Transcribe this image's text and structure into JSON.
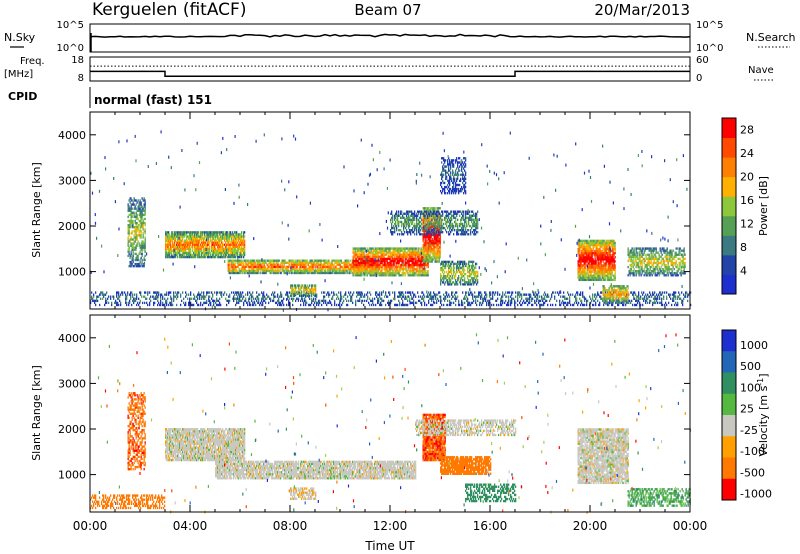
{
  "header": {
    "station": "Kerguelen (fitACF)",
    "beam": "Beam 07",
    "date": "20/Mar/2013"
  },
  "noise_panel": {
    "left_label": "N.Sky",
    "left_ticks": [
      "10^5",
      "10^0"
    ],
    "right_label": "N.Search",
    "right_ticks": [
      "10^5",
      "10^0"
    ],
    "nsky_level": 0.55,
    "nsearch_level": 0.55
  },
  "freq_panel": {
    "left_label_1": "Freq.",
    "left_label_2": "[MHz]",
    "left_ticks": [
      "18",
      "8"
    ],
    "right_label": "Nave",
    "right_ticks": [
      "60",
      "0"
    ],
    "freq_hours": [
      0.0,
      3.0,
      3.0,
      17.0,
      17.0,
      24.0
    ],
    "freq_mhz": [
      12.0,
      12.0,
      10.0,
      10.0,
      12.0,
      12.0
    ],
    "nave_level": 0.62
  },
  "cpid": {
    "label": "CPID",
    "text": "normal (fast) 151"
  },
  "x_axis": {
    "label": "Time UT",
    "ticks": [
      "00:00",
      "04:00",
      "08:00",
      "12:00",
      "16:00",
      "20:00",
      "00:00"
    ],
    "range_hours": [
      0,
      24
    ]
  },
  "colors": {
    "power": [
      "#1e2fd0",
      "#2244a8",
      "#3a7a80",
      "#55a055",
      "#8cc83a",
      "#ffb000",
      "#ff8000",
      "#ff4a00",
      "#ff0000"
    ],
    "velocity": [
      "#1e2fd0",
      "#2266b8",
      "#2f8f60",
      "#55b840",
      "#9dd24a",
      "#c8c8c0",
      "#ffa000",
      "#ff7800",
      "#ff4800",
      "#ff0000"
    ],
    "ground_scatter": "#c8c8c0"
  },
  "chart_data": [
    {
      "type": "heatmap",
      "title": "Power",
      "ylabel": "Slant Range [km]",
      "xlabel": "",
      "ylim": [
        180,
        4500
      ],
      "yticks": [
        "1000",
        "2000",
        "3000",
        "4000"
      ],
      "colorbar": {
        "label": "Power [dB]",
        "range": [
          0,
          30
        ],
        "ticks": [
          "4",
          "8",
          "12",
          "16",
          "20",
          "24",
          "28"
        ]
      },
      "features": [
        {
          "t0": 0.0,
          "t1": 24.0,
          "r0": 250,
          "r1": 560,
          "intensity": 0.25,
          "density": 0.35
        },
        {
          "t0": 1.5,
          "t1": 2.2,
          "r0": 1100,
          "r1": 2600,
          "intensity": 0.45,
          "density": 0.55
        },
        {
          "t0": 3.0,
          "t1": 6.2,
          "r0": 1300,
          "r1": 1850,
          "intensity": 0.65,
          "density": 0.85
        },
        {
          "t0": 5.5,
          "t1": 11.5,
          "r0": 950,
          "r1": 1250,
          "intensity": 0.7,
          "density": 0.8
        },
        {
          "t0": 8.0,
          "t1": 9.0,
          "r0": 450,
          "r1": 700,
          "intensity": 0.55,
          "density": 0.7
        },
        {
          "t0": 10.5,
          "t1": 13.5,
          "r0": 900,
          "r1": 1500,
          "intensity": 0.85,
          "density": 0.85
        },
        {
          "t0": 13.3,
          "t1": 14.0,
          "r0": 1200,
          "r1": 2400,
          "intensity": 0.9,
          "density": 0.85
        },
        {
          "t0": 12.0,
          "t1": 15.5,
          "r0": 1800,
          "r1": 2300,
          "intensity": 0.35,
          "density": 0.55
        },
        {
          "t0": 14.0,
          "t1": 15.0,
          "r0": 2700,
          "r1": 3500,
          "intensity": 0.2,
          "density": 0.45
        },
        {
          "t0": 14.0,
          "t1": 15.5,
          "r0": 700,
          "r1": 1200,
          "intensity": 0.5,
          "density": 0.6
        },
        {
          "t0": 19.5,
          "t1": 21.0,
          "r0": 800,
          "r1": 1700,
          "intensity": 0.85,
          "density": 0.85
        },
        {
          "t0": 20.5,
          "t1": 21.5,
          "r0": 300,
          "r1": 700,
          "intensity": 0.6,
          "density": 0.7
        },
        {
          "t0": 21.5,
          "t1": 23.8,
          "r0": 900,
          "r1": 1500,
          "intensity": 0.5,
          "density": 0.6
        }
      ]
    },
    {
      "type": "heatmap",
      "title": "Velocity",
      "ylabel": "Slant Range [km]",
      "xlabel": "Time UT",
      "ylim": [
        180,
        4500
      ],
      "yticks": [
        "1000",
        "2000",
        "3000",
        "4000"
      ],
      "colorbar": {
        "label": "Velocity [m s^-1]",
        "range": [
          -1000,
          1000
        ],
        "ticks": [
          "1000",
          "500",
          "100",
          "25",
          "-25",
          "-100",
          "-500",
          "-1000"
        ]
      },
      "features": [
        {
          "t0": 0.0,
          "t1": 3.0,
          "r0": 250,
          "r1": 560,
          "value": -300,
          "density": 0.45
        },
        {
          "t0": 1.5,
          "t1": 2.2,
          "r0": 1100,
          "r1": 2800,
          "value": -400,
          "density": 0.5
        },
        {
          "t0": 3.0,
          "t1": 6.2,
          "r0": 1300,
          "r1": 2000,
          "value": 0,
          "density": 0.9
        },
        {
          "t0": 5.0,
          "t1": 13.0,
          "r0": 900,
          "r1": 1300,
          "value": 0,
          "density": 0.85
        },
        {
          "t0": 8.0,
          "t1": 9.0,
          "r0": 450,
          "r1": 700,
          "value": -20,
          "density": 0.7
        },
        {
          "t0": 13.3,
          "t1": 14.2,
          "r0": 1300,
          "r1": 2300,
          "value": -450,
          "density": 0.9
        },
        {
          "t0": 14.0,
          "t1": 16.0,
          "r0": 1000,
          "r1": 1400,
          "value": -350,
          "density": 0.85
        },
        {
          "t0": 13.0,
          "t1": 17.0,
          "r0": 1850,
          "r1": 2200,
          "value": 0,
          "density": 0.55
        },
        {
          "t0": 15.0,
          "t1": 17.0,
          "r0": 400,
          "r1": 800,
          "value": 200,
          "density": 0.5
        },
        {
          "t0": 19.5,
          "t1": 21.5,
          "r0": 800,
          "r1": 2000,
          "value": 0,
          "density": 0.85
        },
        {
          "t0": 21.5,
          "t1": 24.0,
          "r0": 300,
          "r1": 700,
          "value": 100,
          "density": 0.5
        }
      ]
    }
  ]
}
